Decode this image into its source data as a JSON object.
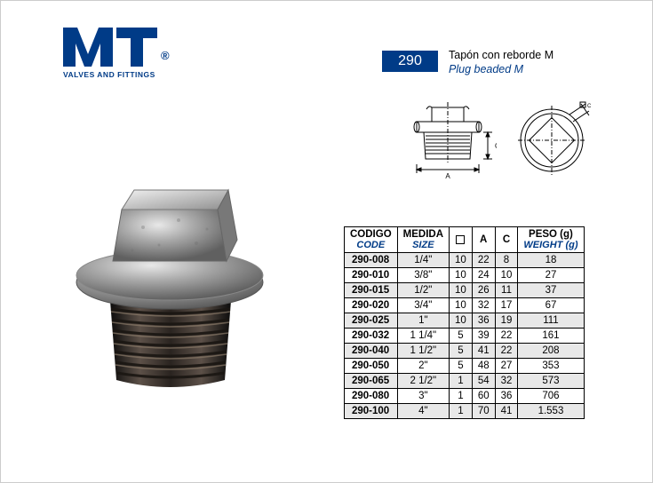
{
  "brand": {
    "tagline": "VALVES AND FITTINGS",
    "registered": "®",
    "logo_color": "#003b87"
  },
  "product": {
    "code_badge": "290",
    "title_es": "Tapón con reborde M",
    "title_en": "Plug beaded M"
  },
  "table": {
    "headers": {
      "code": {
        "es": "CODIGO",
        "en": "CODE"
      },
      "size": {
        "es": "MEDIDA",
        "en": "SIZE"
      },
      "sq": {
        "es": "",
        "en": ""
      },
      "a": {
        "es": "A",
        "en": ""
      },
      "c": {
        "es": "C",
        "en": ""
      },
      "weight": {
        "es": "PESO (g)",
        "en": "WEIGHT (g)"
      }
    },
    "rows": [
      {
        "code": "290-008",
        "size": "1/4\"",
        "sq": "10",
        "a": "22",
        "c": "8",
        "weight": "18"
      },
      {
        "code": "290-010",
        "size": "3/8\"",
        "sq": "10",
        "a": "24",
        "c": "10",
        "weight": "27"
      },
      {
        "code": "290-015",
        "size": "1/2\"",
        "sq": "10",
        "a": "26",
        "c": "11",
        "weight": "37"
      },
      {
        "code": "290-020",
        "size": "3/4\"",
        "sq": "10",
        "a": "32",
        "c": "17",
        "weight": "67"
      },
      {
        "code": "290-025",
        "size": "1\"",
        "sq": "10",
        "a": "36",
        "c": "19",
        "weight": "111"
      },
      {
        "code": "290-032",
        "size": "1 1/4\"",
        "sq": "5",
        "a": "39",
        "c": "22",
        "weight": "161"
      },
      {
        "code": "290-040",
        "size": "1 1/2\"",
        "sq": "5",
        "a": "41",
        "c": "22",
        "weight": "208"
      },
      {
        "code": "290-050",
        "size": "2\"",
        "sq": "5",
        "a": "48",
        "c": "27",
        "weight": "353"
      },
      {
        "code": "290-065",
        "size": "2 1/2\"",
        "sq": "1",
        "a": "54",
        "c": "32",
        "weight": "573"
      },
      {
        "code": "290-080",
        "size": "3\"",
        "sq": "1",
        "a": "60",
        "c": "36",
        "weight": "706"
      },
      {
        "code": "290-100",
        "size": "4\"",
        "sq": "1",
        "a": "70",
        "c": "41",
        "weight": "1.553"
      }
    ],
    "colors": {
      "header_text": "#000000",
      "sub_header_text": "#003b87",
      "row_alt_bg": "#e8e8e8",
      "border": "#000000"
    }
  }
}
